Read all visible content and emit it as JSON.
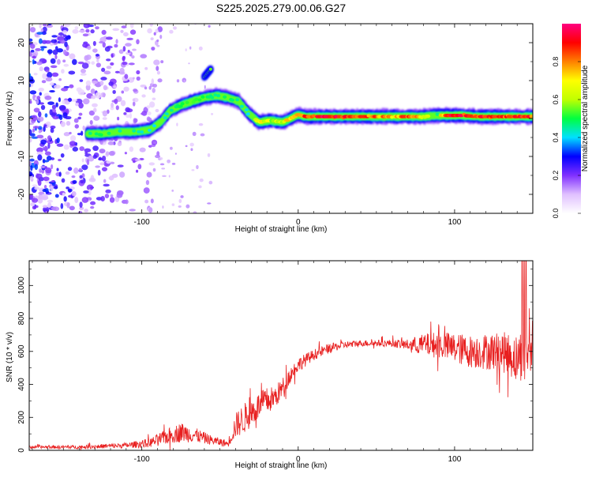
{
  "title": "S225.2025.279.00.06.G27",
  "chart_data": [
    {
      "type": "heatmap",
      "xlabel": "Height of straight line (km)",
      "ylabel": "Frequency (Hz)",
      "xlim": [
        -172,
        150
      ],
      "ylim": [
        -25,
        25
      ],
      "x_ticks": [
        -100,
        0,
        100
      ],
      "x_tick_labels": [
        "-100",
        "0",
        "100"
      ],
      "y_ticks": [
        -20,
        -10,
        0,
        10,
        20
      ],
      "y_tick_labels": [
        "-20",
        "-10",
        "0",
        "10",
        "20"
      ],
      "colorbar": {
        "label": "Normalized spectral amplitude",
        "range": [
          0.0,
          1.0
        ],
        "ticks": [
          0.0,
          0.2,
          0.4,
          0.6,
          0.8
        ],
        "tick_labels": [
          "0.0",
          "0.2",
          "0.4",
          "0.6",
          "0.8"
        ],
        "colors": [
          "#ffffff",
          "#e0c0ff",
          "#8030ff",
          "#0000ff",
          "#00e0ff",
          "#00ff40",
          "#c0ff00",
          "#ffff00",
          "#ff8000",
          "#ff0000",
          "#ff0080"
        ]
      },
      "ridge": {
        "x": [
          -135,
          -125,
          -115,
          -105,
          -95,
          -88,
          -82,
          -75,
          -68,
          -60,
          -52,
          -45,
          -38,
          -32,
          -25,
          -18,
          -10,
          -5,
          0,
          5,
          10,
          20,
          30,
          40,
          50,
          60,
          70,
          80,
          88,
          95,
          105,
          115,
          125,
          135,
          145,
          150
        ],
        "y": [
          -4,
          -4,
          -3.5,
          -3.5,
          -3,
          -1,
          2,
          3.5,
          4.5,
          5.5,
          6,
          5.5,
          4.5,
          1.5,
          -1,
          -0.5,
          -1,
          0,
          1,
          0.5,
          0.5,
          0.5,
          0.5,
          0.5,
          0.5,
          0.5,
          0.5,
          0.5,
          0.8,
          0.8,
          0.8,
          0.5,
          0.5,
          0.5,
          0.5,
          0.5
        ],
        "amplitude": [
          0.5,
          0.55,
          0.5,
          0.5,
          0.45,
          0.45,
          0.5,
          0.55,
          0.6,
          0.55,
          0.5,
          0.55,
          0.5,
          0.45,
          0.7,
          0.6,
          0.65,
          0.75,
          0.8,
          0.85,
          0.9,
          0.95,
          0.9,
          0.85,
          0.8,
          0.75,
          0.85,
          0.7,
          0.45,
          0.9,
          0.9,
          0.85,
          0.9,
          0.85,
          0.9,
          0.85
        ]
      },
      "spur": {
        "x": [
          -60,
          -56
        ],
        "y": [
          11,
          13
        ],
        "amplitude": 0.55
      },
      "noise_region": {
        "x_range": [
          -172,
          -88
        ],
        "y_range": [
          -25,
          25
        ],
        "amplitude_max": 0.3
      }
    },
    {
      "type": "line",
      "xlabel": "Height of straight line (km)",
      "ylabel": "SNR (10 * v/v)",
      "xlim": [
        -172,
        150
      ],
      "ylim": [
        0,
        1150
      ],
      "x_ticks": [
        -100,
        0,
        100
      ],
      "x_tick_labels": [
        "-100",
        "0",
        "100"
      ],
      "y_ticks": [
        0,
        200,
        400,
        600,
        800,
        1000
      ],
      "y_tick_labels": [
        "0",
        "200",
        "400",
        "600",
        "800",
        "1000"
      ],
      "series": [
        {
          "name": "SNR",
          "color": "#e82020",
          "envelope_x": [
            -172,
            -140,
            -110,
            -95,
            -85,
            -75,
            -65,
            -55,
            -45,
            -40,
            -35,
            -30,
            -25,
            -20,
            -15,
            -10,
            -5,
            0,
            10,
            20,
            30,
            40,
            50,
            60,
            70,
            80,
            90,
            100,
            110,
            120,
            130,
            140,
            145,
            150
          ],
          "envelope_y": [
            20,
            20,
            30,
            45,
            80,
            110,
            90,
            60,
            40,
            150,
            190,
            230,
            270,
            300,
            320,
            380,
            460,
            520,
            580,
            620,
            640,
            650,
            650,
            650,
            640,
            640,
            640,
            620,
            600,
            600,
            600,
            560,
            600,
            650
          ],
          "noise_amp_y": [
            15,
            20,
            30,
            50,
            80,
            110,
            80,
            50,
            40,
            140,
            170,
            160,
            150,
            150,
            130,
            110,
            90,
            80,
            60,
            50,
            40,
            35,
            35,
            40,
            60,
            120,
            150,
            170,
            180,
            200,
            220,
            260,
            320,
            260
          ],
          "points": 1300
        }
      ]
    }
  ]
}
